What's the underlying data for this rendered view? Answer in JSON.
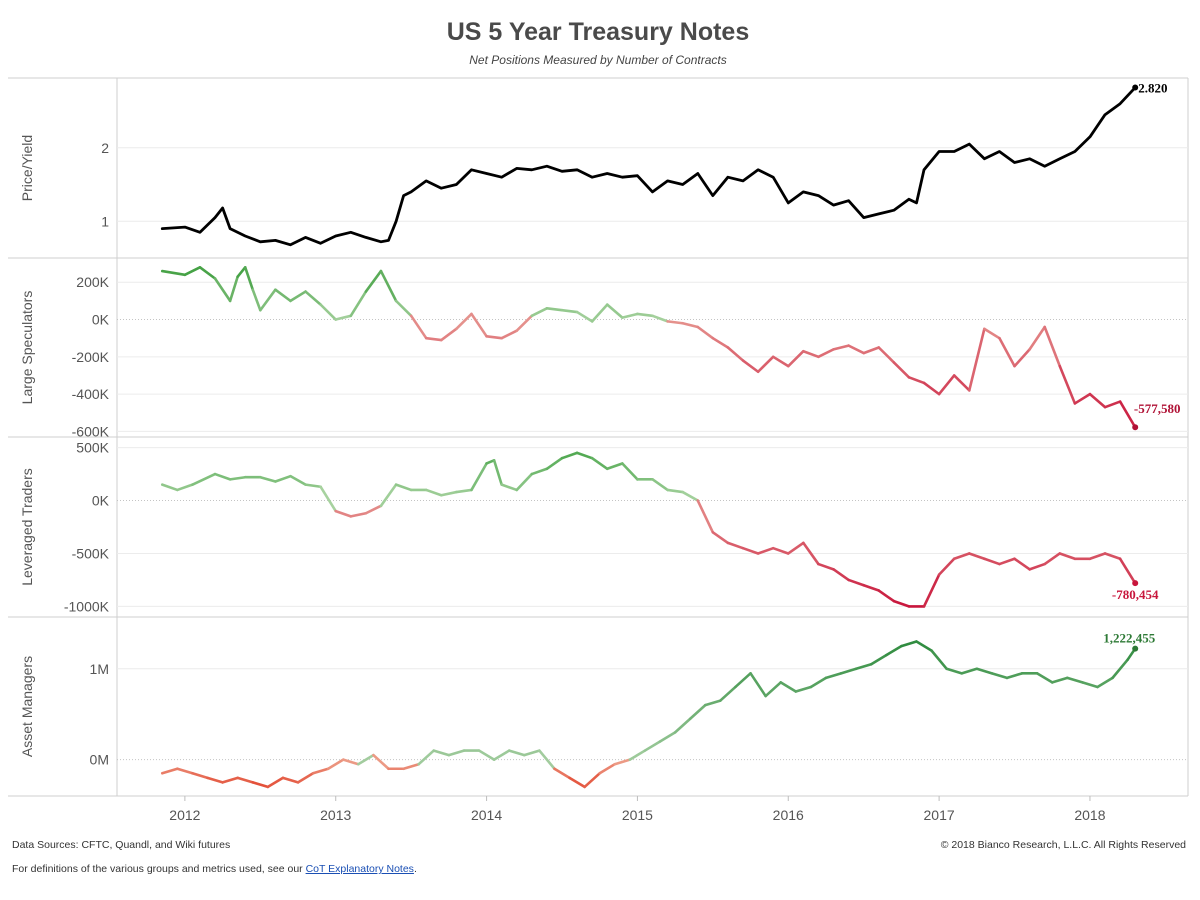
{
  "page": {
    "title": "US 5 Year Treasury Notes",
    "subtitle": "Net Positions Measured by Number of Contracts",
    "footer": {
      "sources": "Data Sources: CFTC, Quandl, and Wiki futures",
      "copyright": "© 2018 Bianco Research, L.L.C. All Rights Reserved",
      "definitions_prefix": "For definitions of the various groups and metrics used, see our ",
      "definitions_link": "CoT Explanatory Notes",
      "definitions_suffix": "."
    }
  },
  "chart_data": [
    {
      "id": "price-yield",
      "type": "line",
      "ylabel": "Price/Yield",
      "y_ticks": [
        1,
        2
      ],
      "ylim": [
        0.5,
        2.95
      ],
      "y_tick_labels": [
        "1",
        "2"
      ],
      "end_label": "2.820",
      "colors": {
        "line": "#000000",
        "end": "#000000"
      },
      "series": [
        {
          "x": [
            2011.85,
            2012.0,
            2012.1,
            2012.2,
            2012.25,
            2012.3,
            2012.4,
            2012.5,
            2012.6,
            2012.7,
            2012.8,
            2012.9,
            2013.0,
            2013.1,
            2013.2,
            2013.3,
            2013.35,
            2013.4,
            2013.45,
            2013.5,
            2013.6,
            2013.7,
            2013.8,
            2013.9,
            2014.0,
            2014.1,
            2014.2,
            2014.3,
            2014.4,
            2014.5,
            2014.6,
            2014.7,
            2014.8,
            2014.9,
            2015.0,
            2015.1,
            2015.2,
            2015.3,
            2015.4,
            2015.5,
            2015.6,
            2015.7,
            2015.8,
            2015.9,
            2016.0,
            2016.1,
            2016.2,
            2016.3,
            2016.4,
            2016.5,
            2016.6,
            2016.7,
            2016.8,
            2016.85,
            2016.9,
            2017.0,
            2017.1,
            2017.2,
            2017.3,
            2017.4,
            2017.5,
            2017.6,
            2017.7,
            2017.8,
            2017.9,
            2018.0,
            2018.1,
            2018.2,
            2018.3
          ],
          "y": [
            0.9,
            0.92,
            0.85,
            1.05,
            1.18,
            0.9,
            0.8,
            0.72,
            0.74,
            0.68,
            0.78,
            0.7,
            0.8,
            0.85,
            0.78,
            0.72,
            0.74,
            1.0,
            1.35,
            1.4,
            1.55,
            1.45,
            1.5,
            1.7,
            1.65,
            1.6,
            1.72,
            1.7,
            1.75,
            1.68,
            1.7,
            1.6,
            1.65,
            1.6,
            1.62,
            1.4,
            1.55,
            1.5,
            1.65,
            1.35,
            1.6,
            1.55,
            1.7,
            1.6,
            1.25,
            1.4,
            1.35,
            1.22,
            1.28,
            1.05,
            1.1,
            1.15,
            1.3,
            1.25,
            1.7,
            1.95,
            1.95,
            2.05,
            1.85,
            1.95,
            1.8,
            1.85,
            1.75,
            1.85,
            1.95,
            2.15,
            2.45,
            2.6,
            2.82
          ]
        }
      ]
    },
    {
      "id": "large-speculators",
      "type": "line",
      "ylabel": "Large Speculators",
      "y_ticks": [
        200000,
        0,
        -200000,
        -400000,
        -600000
      ],
      "ylim": [
        -630000,
        330000
      ],
      "y_tick_labels": [
        "200K",
        "0K",
        "-200K",
        "-400K",
        "-600K"
      ],
      "end_label": "-577,580",
      "colors": {
        "positive": "#3e9e3e",
        "negative": "#c8163c",
        "end": "#b01236"
      },
      "series": [
        {
          "x": [
            2011.85,
            2012.0,
            2012.1,
            2012.2,
            2012.3,
            2012.35,
            2012.4,
            2012.45,
            2012.5,
            2012.6,
            2012.7,
            2012.8,
            2012.9,
            2013.0,
            2013.1,
            2013.2,
            2013.3,
            2013.4,
            2013.5,
            2013.6,
            2013.7,
            2013.8,
            2013.9,
            2014.0,
            2014.1,
            2014.2,
            2014.3,
            2014.4,
            2014.5,
            2014.6,
            2014.7,
            2014.8,
            2014.9,
            2015.0,
            2015.1,
            2015.2,
            2015.3,
            2015.4,
            2015.5,
            2015.6,
            2015.7,
            2015.8,
            2015.9,
            2016.0,
            2016.1,
            2016.2,
            2016.3,
            2016.4,
            2016.5,
            2016.6,
            2016.7,
            2016.8,
            2016.9,
            2017.0,
            2017.1,
            2017.2,
            2017.3,
            2017.4,
            2017.5,
            2017.6,
            2017.7,
            2017.8,
            2017.9,
            2018.0,
            2018.1,
            2018.2,
            2018.3
          ],
          "y": [
            260000,
            240000,
            280000,
            220000,
            100000,
            230000,
            280000,
            160000,
            50000,
            160000,
            100000,
            150000,
            80000,
            0,
            20000,
            150000,
            260000,
            100000,
            20000,
            -100000,
            -110000,
            -50000,
            30000,
            -90000,
            -100000,
            -60000,
            20000,
            60000,
            50000,
            40000,
            -10000,
            80000,
            10000,
            30000,
            20000,
            -10000,
            -20000,
            -40000,
            -100000,
            -150000,
            -220000,
            -280000,
            -200000,
            -250000,
            -170000,
            -200000,
            -160000,
            -140000,
            -180000,
            -150000,
            -230000,
            -310000,
            -340000,
            -400000,
            -300000,
            -380000,
            -50000,
            -100000,
            -250000,
            -160000,
            -40000,
            -250000,
            -450000,
            -400000,
            -470000,
            -440000,
            -577580
          ]
        }
      ]
    },
    {
      "id": "leveraged-traders",
      "type": "line",
      "ylabel": "Leveraged Traders",
      "y_ticks": [
        500000,
        0,
        -500000,
        -1000000
      ],
      "ylim": [
        -1100000,
        600000
      ],
      "y_tick_labels": [
        "500K",
        "0K",
        "-500K",
        "-1000K"
      ],
      "end_label": "-780,454",
      "colors": {
        "positive": "#4fa84f",
        "negative": "#c8163c",
        "end": "#c8163c"
      },
      "series": [
        {
          "x": [
            2011.85,
            2011.95,
            2012.05,
            2012.2,
            2012.3,
            2012.4,
            2012.5,
            2012.6,
            2012.7,
            2012.8,
            2012.9,
            2013.0,
            2013.1,
            2013.2,
            2013.3,
            2013.4,
            2013.5,
            2013.6,
            2013.7,
            2013.8,
            2013.9,
            2014.0,
            2014.05,
            2014.1,
            2014.2,
            2014.3,
            2014.4,
            2014.5,
            2014.6,
            2014.7,
            2014.8,
            2014.9,
            2015.0,
            2015.1,
            2015.2,
            2015.3,
            2015.4,
            2015.5,
            2015.6,
            2015.7,
            2015.8,
            2015.9,
            2016.0,
            2016.1,
            2016.2,
            2016.3,
            2016.4,
            2016.5,
            2016.6,
            2016.7,
            2016.8,
            2016.9,
            2017.0,
            2017.1,
            2017.2,
            2017.3,
            2017.4,
            2017.5,
            2017.6,
            2017.7,
            2017.8,
            2017.9,
            2018.0,
            2018.1,
            2018.2,
            2018.3
          ],
          "y": [
            150000,
            100000,
            150000,
            250000,
            200000,
            220000,
            220000,
            180000,
            230000,
            150000,
            130000,
            -100000,
            -150000,
            -120000,
            -50000,
            150000,
            100000,
            100000,
            50000,
            80000,
            100000,
            350000,
            380000,
            150000,
            100000,
            250000,
            300000,
            400000,
            450000,
            400000,
            300000,
            350000,
            200000,
            200000,
            100000,
            80000,
            0,
            -300000,
            -400000,
            -450000,
            -500000,
            -450000,
            -500000,
            -400000,
            -600000,
            -650000,
            -750000,
            -800000,
            -850000,
            -950000,
            -1000000,
            -1000000,
            -700000,
            -550000,
            -500000,
            -550000,
            -600000,
            -550000,
            -650000,
            -600000,
            -500000,
            -550000,
            -550000,
            -500000,
            -550000,
            -780454
          ]
        }
      ]
    },
    {
      "id": "asset-managers",
      "type": "line",
      "ylabel": "Asset Managers",
      "y_ticks": [
        1000000,
        0
      ],
      "ylim": [
        -400000,
        1570000
      ],
      "y_tick_labels": [
        "1M",
        "0M"
      ],
      "end_label": "1,222,455",
      "colors": {
        "positive": "#2e8b3e",
        "negative": "#e34a33",
        "end": "#2e7a36"
      },
      "series": [
        {
          "x": [
            2011.85,
            2011.95,
            2012.05,
            2012.15,
            2012.25,
            2012.35,
            2012.45,
            2012.55,
            2012.65,
            2012.75,
            2012.85,
            2012.95,
            2013.05,
            2013.15,
            2013.25,
            2013.35,
            2013.45,
            2013.55,
            2013.65,
            2013.75,
            2013.85,
            2013.95,
            2014.05,
            2014.15,
            2014.25,
            2014.35,
            2014.45,
            2014.55,
            2014.65,
            2014.75,
            2014.85,
            2014.95,
            2015.05,
            2015.15,
            2015.25,
            2015.35,
            2015.45,
            2015.55,
            2015.65,
            2015.75,
            2015.85,
            2015.95,
            2016.05,
            2016.15,
            2016.25,
            2016.35,
            2016.45,
            2016.55,
            2016.65,
            2016.75,
            2016.85,
            2016.95,
            2017.05,
            2017.15,
            2017.25,
            2017.35,
            2017.45,
            2017.55,
            2017.65,
            2017.75,
            2017.85,
            2017.95,
            2018.05,
            2018.15,
            2018.25,
            2018.3
          ],
          "y": [
            -150000,
            -100000,
            -150000,
            -200000,
            -250000,
            -200000,
            -250000,
            -300000,
            -200000,
            -250000,
            -150000,
            -100000,
            0,
            -50000,
            50000,
            -100000,
            -100000,
            -50000,
            100000,
            50000,
            100000,
            100000,
            0,
            100000,
            50000,
            100000,
            -100000,
            -200000,
            -300000,
            -150000,
            -50000,
            0,
            100000,
            200000,
            300000,
            450000,
            600000,
            650000,
            800000,
            950000,
            700000,
            850000,
            750000,
            800000,
            900000,
            950000,
            1000000,
            1050000,
            1150000,
            1250000,
            1300000,
            1200000,
            1000000,
            950000,
            1000000,
            950000,
            900000,
            950000,
            950000,
            850000,
            900000,
            850000,
            800000,
            900000,
            1100000,
            1222455
          ]
        }
      ]
    }
  ],
  "x_axis": {
    "ticks": [
      2012,
      2013,
      2014,
      2015,
      2016,
      2017,
      2018
    ],
    "tick_labels": [
      "2012",
      "2013",
      "2014",
      "2015",
      "2016",
      "2017",
      "2018"
    ],
    "xlim": [
      2011.55,
      2018.65
    ]
  },
  "grid": true
}
